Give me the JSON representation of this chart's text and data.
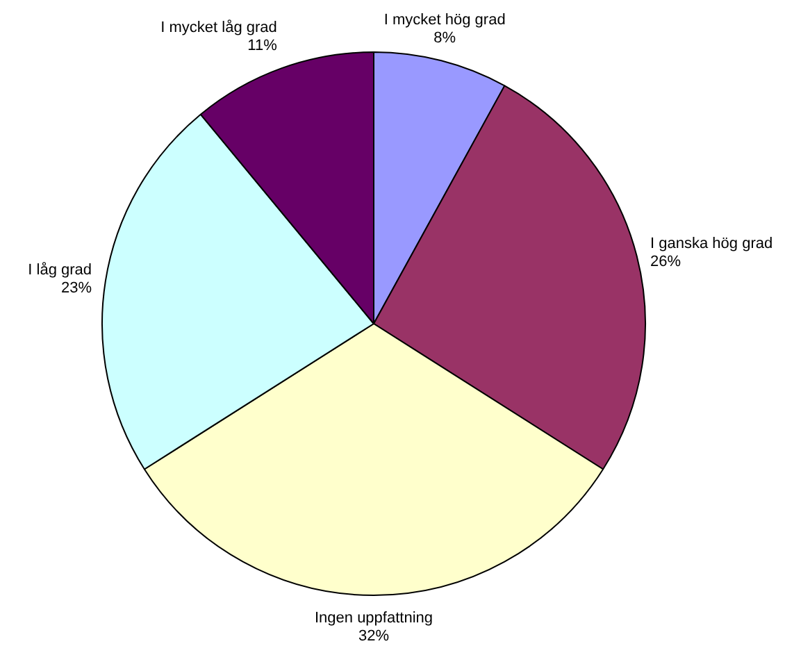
{
  "chart_data": {
    "type": "pie",
    "categories": [
      "I mycket hög grad",
      "I ganska hög grad",
      "Ingen uppfattning",
      "I låg grad",
      "I mycket låg grad"
    ],
    "values": [
      8,
      26,
      32,
      23,
      11
    ],
    "colors": [
      "#9999ff",
      "#993366",
      "#ffffcc",
      "#ccffff",
      "#660066"
    ],
    "value_labels": [
      "8%",
      "26%",
      "32%",
      "23%",
      "11%"
    ],
    "legend": false
  }
}
